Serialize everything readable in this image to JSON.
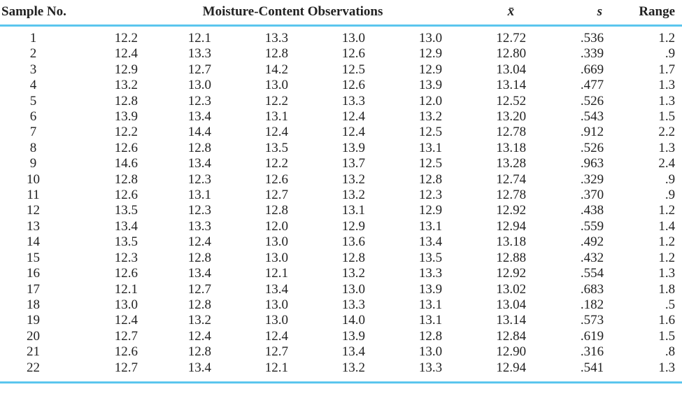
{
  "colors": {
    "rule_blue": "#5bc6ee",
    "text": "#222222",
    "background": "#ffffff"
  },
  "table": {
    "headers": {
      "sample": "Sample No.",
      "observations": "Moisture-Content Observations",
      "mean": "x̄",
      "s": "s",
      "range": "Range"
    },
    "rows": [
      {
        "sample": "1",
        "obs": [
          "12.2",
          "12.1",
          "13.3",
          "13.0",
          "13.0"
        ],
        "mean": "12.72",
        "s": ".536",
        "range": "1.2"
      },
      {
        "sample": "2",
        "obs": [
          "12.4",
          "13.3",
          "12.8",
          "12.6",
          "12.9"
        ],
        "mean": "12.80",
        "s": ".339",
        "range": ".9"
      },
      {
        "sample": "3",
        "obs": [
          "12.9",
          "12.7",
          "14.2",
          "12.5",
          "12.9"
        ],
        "mean": "13.04",
        "s": ".669",
        "range": "1.7"
      },
      {
        "sample": "4",
        "obs": [
          "13.2",
          "13.0",
          "13.0",
          "12.6",
          "13.9"
        ],
        "mean": "13.14",
        "s": ".477",
        "range": "1.3"
      },
      {
        "sample": "5",
        "obs": [
          "12.8",
          "12.3",
          "12.2",
          "13.3",
          "12.0"
        ],
        "mean": "12.52",
        "s": ".526",
        "range": "1.3"
      },
      {
        "sample": "6",
        "obs": [
          "13.9",
          "13.4",
          "13.1",
          "12.4",
          "13.2"
        ],
        "mean": "13.20",
        "s": ".543",
        "range": "1.5"
      },
      {
        "sample": "7",
        "obs": [
          "12.2",
          "14.4",
          "12.4",
          "12.4",
          "12.5"
        ],
        "mean": "12.78",
        "s": ".912",
        "range": "2.2"
      },
      {
        "sample": "8",
        "obs": [
          "12.6",
          "12.8",
          "13.5",
          "13.9",
          "13.1"
        ],
        "mean": "13.18",
        "s": ".526",
        "range": "1.3"
      },
      {
        "sample": "9",
        "obs": [
          "14.6",
          "13.4",
          "12.2",
          "13.7",
          "12.5"
        ],
        "mean": "13.28",
        "s": ".963",
        "range": "2.4"
      },
      {
        "sample": "10",
        "obs": [
          "12.8",
          "12.3",
          "12.6",
          "13.2",
          "12.8"
        ],
        "mean": "12.74",
        "s": ".329",
        "range": ".9"
      },
      {
        "sample": "11",
        "obs": [
          "12.6",
          "13.1",
          "12.7",
          "13.2",
          "12.3"
        ],
        "mean": "12.78",
        "s": ".370",
        "range": ".9"
      },
      {
        "sample": "12",
        "obs": [
          "13.5",
          "12.3",
          "12.8",
          "13.1",
          "12.9"
        ],
        "mean": "12.92",
        "s": ".438",
        "range": "1.2"
      },
      {
        "sample": "13",
        "obs": [
          "13.4",
          "13.3",
          "12.0",
          "12.9",
          "13.1"
        ],
        "mean": "12.94",
        "s": ".559",
        "range": "1.4"
      },
      {
        "sample": "14",
        "obs": [
          "13.5",
          "12.4",
          "13.0",
          "13.6",
          "13.4"
        ],
        "mean": "13.18",
        "s": ".492",
        "range": "1.2"
      },
      {
        "sample": "15",
        "obs": [
          "12.3",
          "12.8",
          "13.0",
          "12.8",
          "13.5"
        ],
        "mean": "12.88",
        "s": ".432",
        "range": "1.2"
      },
      {
        "sample": "16",
        "obs": [
          "12.6",
          "13.4",
          "12.1",
          "13.2",
          "13.3"
        ],
        "mean": "12.92",
        "s": ".554",
        "range": "1.3"
      },
      {
        "sample": "17",
        "obs": [
          "12.1",
          "12.7",
          "13.4",
          "13.0",
          "13.9"
        ],
        "mean": "13.02",
        "s": ".683",
        "range": "1.8"
      },
      {
        "sample": "18",
        "obs": [
          "13.0",
          "12.8",
          "13.0",
          "13.3",
          "13.1"
        ],
        "mean": "13.04",
        "s": ".182",
        "range": ".5"
      },
      {
        "sample": "19",
        "obs": [
          "12.4",
          "13.2",
          "13.0",
          "14.0",
          "13.1"
        ],
        "mean": "13.14",
        "s": ".573",
        "range": "1.6"
      },
      {
        "sample": "20",
        "obs": [
          "12.7",
          "12.4",
          "12.4",
          "13.9",
          "12.8"
        ],
        "mean": "12.84",
        "s": ".619",
        "range": "1.5"
      },
      {
        "sample": "21",
        "obs": [
          "12.6",
          "12.8",
          "12.7",
          "13.4",
          "13.0"
        ],
        "mean": "12.90",
        "s": ".316",
        "range": ".8"
      },
      {
        "sample": "22",
        "obs": [
          "12.7",
          "13.4",
          "12.1",
          "13.2",
          "13.3"
        ],
        "mean": "12.94",
        "s": ".541",
        "range": "1.3"
      }
    ]
  }
}
